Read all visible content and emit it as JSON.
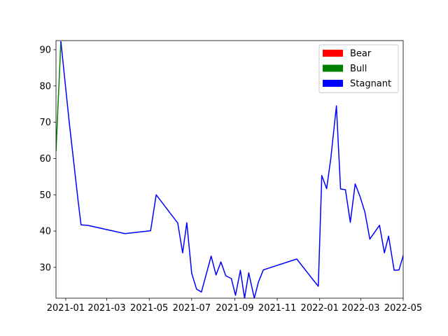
{
  "chart_data": {
    "type": "line",
    "title": "",
    "xlabel": "",
    "ylabel": "",
    "x_ticks": [
      "2021-01",
      "2021-03",
      "2021-05",
      "2021-07",
      "2021-09",
      "2021-11",
      "2022-01",
      "2022-03",
      "2022-05"
    ],
    "y_ticks": [
      30,
      40,
      50,
      60,
      70,
      80,
      90
    ],
    "xlim": [
      "2020-12-18",
      "2022-05-01"
    ],
    "ylim": [
      21.5,
      92.5
    ],
    "grid": false,
    "legend": {
      "position": "top-right",
      "entries": [
        {
          "label": "Bear",
          "color": "#ff0000"
        },
        {
          "label": "Bull",
          "color": "#008000"
        },
        {
          "label": "Stagnant",
          "color": "#0000ff"
        }
      ]
    },
    "series": [
      {
        "name": "Bull",
        "color": "#008000",
        "points": [
          [
            "2020-12-18",
            62.0
          ],
          [
            "2020-12-25",
            92.3
          ]
        ]
      },
      {
        "name": "Stagnant",
        "color": "#0000ff",
        "points": [
          [
            "2020-12-25",
            92.3
          ],
          [
            "2021-01-06",
            70.0
          ],
          [
            "2021-01-19",
            48.0
          ],
          [
            "2021-01-23",
            41.7
          ],
          [
            "2021-02-01",
            41.6
          ],
          [
            "2021-03-27",
            39.3
          ],
          [
            "2021-05-03",
            40.1
          ],
          [
            "2021-05-11",
            50.0
          ],
          [
            "2021-06-11",
            42.2
          ],
          [
            "2021-06-18",
            34.0
          ],
          [
            "2021-06-24",
            42.3
          ],
          [
            "2021-07-01",
            28.4
          ],
          [
            "2021-07-08",
            24.0
          ],
          [
            "2021-07-15",
            23.2
          ],
          [
            "2021-07-29",
            33.1
          ],
          [
            "2021-08-05",
            27.9
          ],
          [
            "2021-08-12",
            31.5
          ],
          [
            "2021-08-19",
            27.7
          ],
          [
            "2021-08-27",
            26.9
          ],
          [
            "2021-09-02",
            22.3
          ],
          [
            "2021-09-09",
            29.2
          ],
          [
            "2021-09-15",
            21.5
          ],
          [
            "2021-09-21",
            28.5
          ],
          [
            "2021-09-29",
            21.5
          ],
          [
            "2021-10-05",
            26.0
          ],
          [
            "2021-10-12",
            29.3
          ],
          [
            "2021-11-29",
            32.3
          ],
          [
            "2021-12-24",
            26.2
          ],
          [
            "2021-12-30",
            24.8
          ],
          [
            "2022-01-04",
            55.3
          ],
          [
            "2022-01-11",
            51.7
          ],
          [
            "2022-01-17",
            60.1
          ],
          [
            "2022-01-25",
            74.5
          ],
          [
            "2022-01-31",
            51.6
          ],
          [
            "2022-02-07",
            51.4
          ],
          [
            "2022-02-14",
            42.4
          ],
          [
            "2022-02-21",
            53.0
          ],
          [
            "2022-02-28",
            49.5
          ],
          [
            "2022-03-07",
            45.2
          ],
          [
            "2022-03-14",
            37.8
          ],
          [
            "2022-03-28",
            41.6
          ],
          [
            "2022-04-04",
            34.0
          ],
          [
            "2022-04-10",
            38.6
          ],
          [
            "2022-04-18",
            29.2
          ],
          [
            "2022-04-25",
            29.3
          ],
          [
            "2022-05-02",
            33.9
          ]
        ]
      }
    ]
  }
}
